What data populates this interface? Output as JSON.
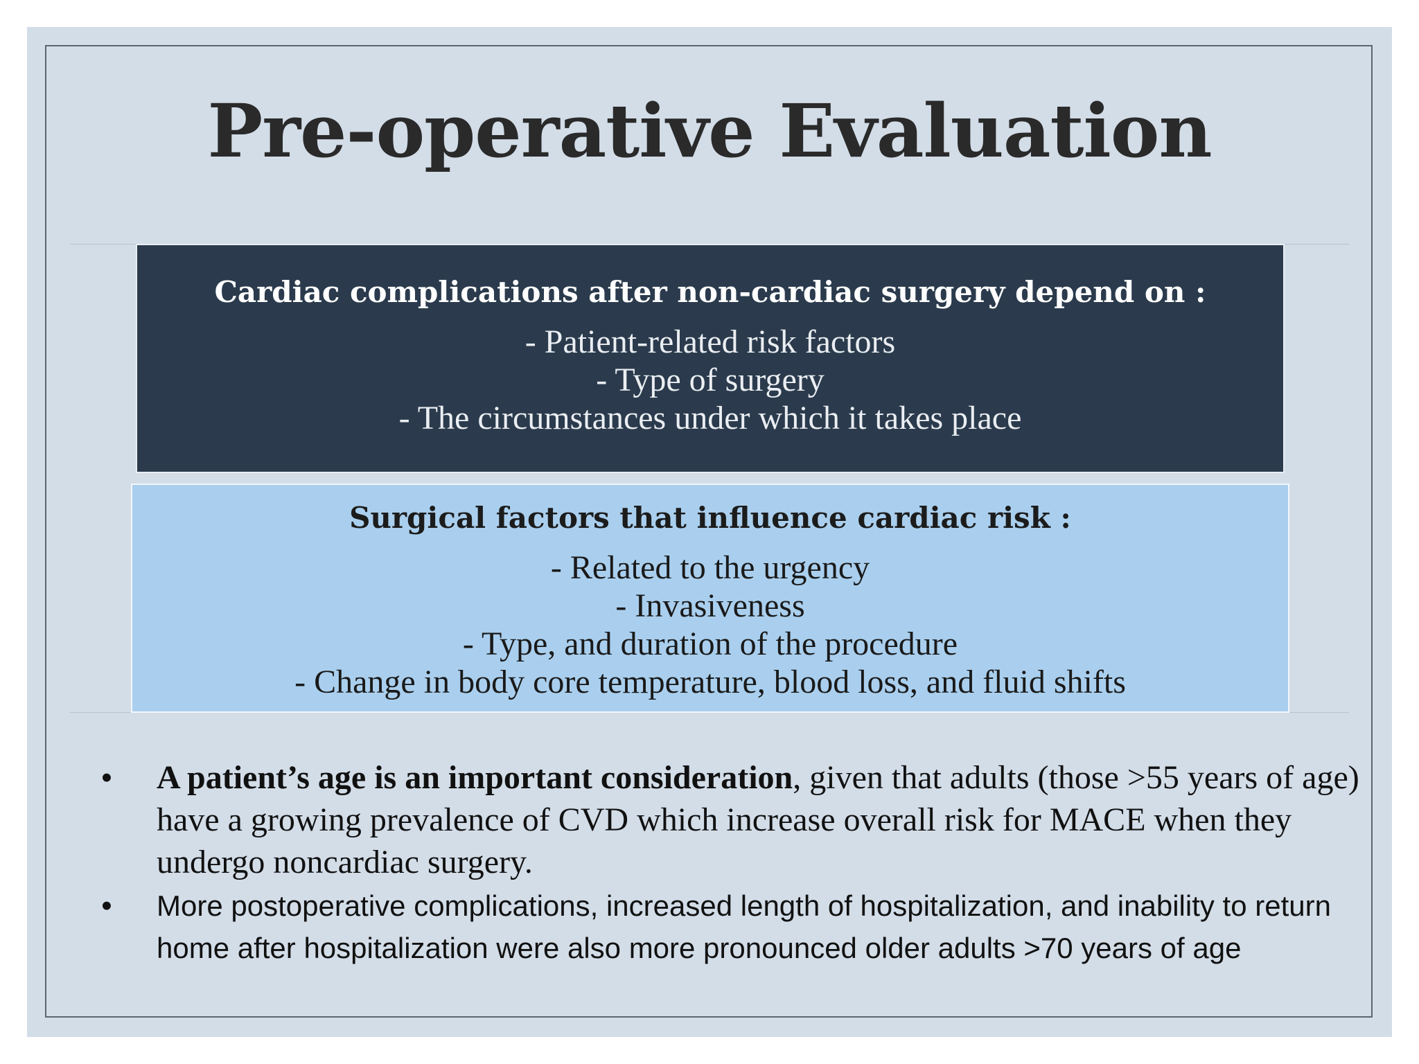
{
  "slide": {
    "title": "Pre-operative Evaluation",
    "cardiac_box": {
      "heading": "Cardiac complications after non-cardiac surgery depend on :",
      "items": [
        "- Patient-related risk factors",
        "- Type of  surgery",
        "- The circumstances under which it takes place"
      ]
    },
    "surgical_box": {
      "heading": "Surgical factors that influence cardiac risk :",
      "items": [
        "- Related to the urgency",
        "- Invasiveness",
        "- Type, and duration of  the procedure",
        "- Change in body core temperature, blood loss, and fluid shifts"
      ]
    },
    "bullets": [
      {
        "marker": "•",
        "bold": "A patient’s age is an important consideration",
        "rest": ", given that adults (those >55 years of age) have a growing prevalence of CVD which increase overall risk for MACE when they undergo noncardiac surgery."
      },
      {
        "marker": "•",
        "text": "More postoperative complications, increased length of hospitalization, and inability to return home after hospitalization were also more pronounced older adults >70 years of age"
      }
    ]
  }
}
